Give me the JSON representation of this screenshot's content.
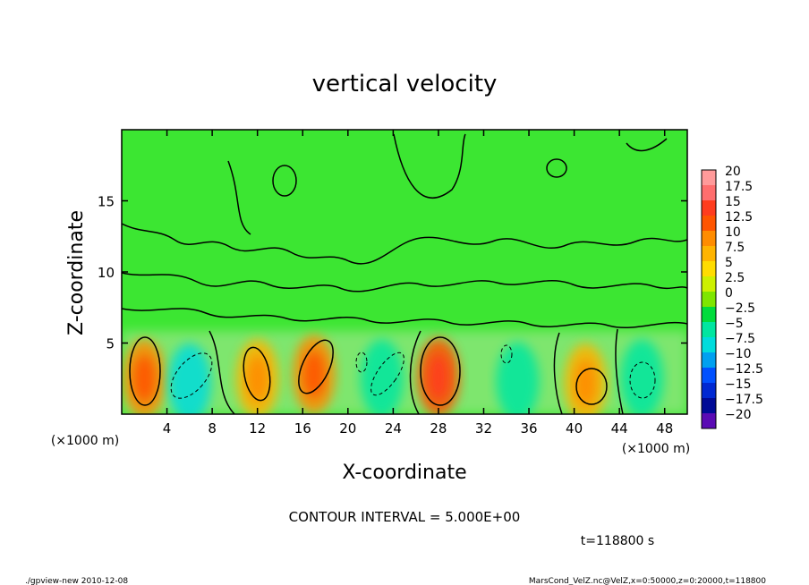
{
  "chart_data": {
    "type": "heatmap",
    "title": "vertical velocity",
    "xlabel": "X-coordinate",
    "ylabel": "Z-coordinate",
    "x_unit": "(×1000 m)",
    "y_unit": "(×1000 m)",
    "xlim": [
      0,
      50
    ],
    "ylim": [
      0,
      20
    ],
    "x_ticks": [
      4,
      8,
      12,
      16,
      20,
      24,
      28,
      32,
      36,
      40,
      44,
      48
    ],
    "y_ticks": [
      5,
      10,
      15
    ],
    "colorbar": {
      "labels": [
        "20",
        "17.5",
        "15",
        "12.5",
        "10",
        "7.5",
        "5",
        "2.5",
        "0",
        "−2.5",
        "−5",
        "−7.5",
        "−10",
        "−12.5",
        "−15",
        "−17.5",
        "−20"
      ],
      "colors": [
        "#ff9a9a",
        "#ff6e6e",
        "#ff3c1e",
        "#ff5500",
        "#ff8c00",
        "#ffb400",
        "#ffdc00",
        "#cdf000",
        "#7ee600",
        "#00dc3c",
        "#00e6a0",
        "#00dcdc",
        "#00a0f0",
        "#0050ff",
        "#0028d2",
        "#000a96",
        "#5a0ab4"
      ]
    },
    "cells": [
      {
        "x": 2.0,
        "z": 2.5,
        "value": 10
      },
      {
        "x": 6.0,
        "z": 2.2,
        "value": -7
      },
      {
        "x": 12.0,
        "z": 2.5,
        "value": 8
      },
      {
        "x": 17.0,
        "z": 2.8,
        "value": 10
      },
      {
        "x": 23.0,
        "z": 2.5,
        "value": -6
      },
      {
        "x": 28.0,
        "z": 2.6,
        "value": 12
      },
      {
        "x": 35.0,
        "z": 2.3,
        "value": -5
      },
      {
        "x": 41.0,
        "z": 2.2,
        "value": 8
      },
      {
        "x": 46.0,
        "z": 2.5,
        "value": -6
      }
    ],
    "contour_interval_label": "CONTOUR INTERVAL = 5.000E+00",
    "time_label": "t=118800 s"
  },
  "footer": {
    "left": "./gpview-new   2010-12-08",
    "right": "MarsCond_VelZ.nc@VelZ,x=0:50000,z=0:20000,t=118800"
  }
}
